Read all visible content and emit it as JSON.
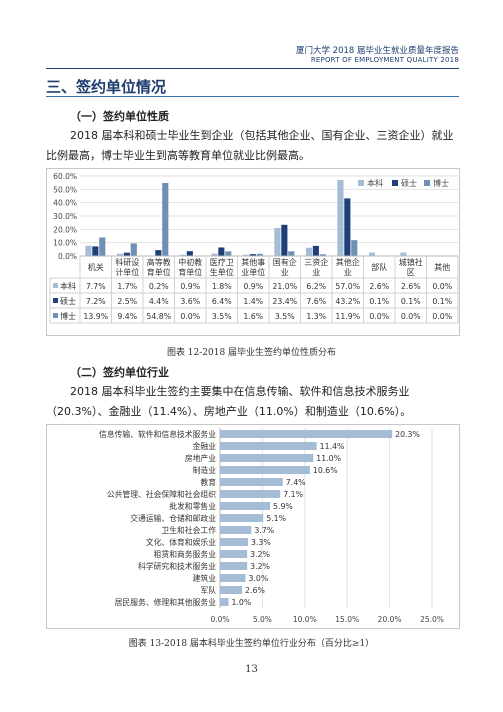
{
  "header": {
    "title_cn": "厦门大学 2018 届毕业生就业质量年度报告",
    "title_en": "REPORT OF EMPLOYMENT QUALITY 2018"
  },
  "section_title": "三、签约单位情况",
  "sub1": {
    "title": "（一）签约单位性质",
    "paragraph": "2018 届本科和硕士毕业生到企业（包括其他企业、国有企业、三资企业）就业比例最高，博士毕业生到高等教育单位就业比例最高。"
  },
  "colors": {
    "本科": "#a5bcd6",
    "硕士": "#1f3f78",
    "博士": "#6f8fb5"
  },
  "chart1": {
    "type": "bar",
    "categories": [
      "机关",
      "科研设计单位",
      "高等教育单位",
      "中初教育单位",
      "医疗卫生单位",
      "其他事业单位",
      "国有企业",
      "三资企业",
      "其他企业",
      "部队",
      "城镇社区",
      "其他"
    ],
    "category_lines": [
      [
        "机关"
      ],
      [
        "科研设",
        "计单位"
      ],
      [
        "高等教",
        "育单位"
      ],
      [
        "中初教",
        "育单位"
      ],
      [
        "医疗卫",
        "生单位"
      ],
      [
        "其他事",
        "业单位"
      ],
      [
        "国有企",
        "业"
      ],
      [
        "三资企",
        "业"
      ],
      [
        "其他企",
        "业"
      ],
      [
        "部队"
      ],
      [
        "城镇社",
        "区"
      ],
      [
        "其他"
      ]
    ],
    "series": [
      {
        "name": "本科",
        "values": [
          7.7,
          1.7,
          0.2,
          0.9,
          1.8,
          0.9,
          21.0,
          6.2,
          57.0,
          2.6,
          2.6,
          0.0
        ]
      },
      {
        "name": "硕士",
        "values": [
          7.2,
          2.5,
          4.4,
          3.6,
          6.4,
          1.4,
          23.4,
          7.6,
          43.2,
          0.1,
          0.1,
          0.1
        ]
      },
      {
        "name": "博士",
        "values": [
          13.9,
          9.4,
          54.8,
          0.0,
          3.5,
          1.6,
          3.5,
          1.3,
          11.9,
          0.0,
          0.0,
          0.0
        ]
      }
    ],
    "table_rows": [
      [
        "7.7%",
        "1.7%",
        "0.2%",
        "0.9%",
        "1.8%",
        "0.9%",
        "21.0%",
        "6.2%",
        "57.0%",
        "2.6%",
        "2.6%",
        "0.0%"
      ],
      [
        "7.2%",
        "2.5%",
        "4.4%",
        "3.6%",
        "6.4%",
        "1.4%",
        "23.4%",
        "7.6%",
        "43.2%",
        "0.1%",
        "0.1%",
        "0.1%"
      ],
      [
        "13.9%",
        "9.4%",
        "54.8%",
        "0.0%",
        "3.5%",
        "1.6%",
        "3.5%",
        "1.3%",
        "11.9%",
        "0.0%",
        "0.0%",
        "0.0%"
      ]
    ],
    "y_ticks": [
      "0.0%",
      "10.0%",
      "20.0%",
      "30.0%",
      "40.0%",
      "50.0%",
      "60.0%"
    ],
    "ylim": [
      0,
      60
    ],
    "legend_position": "top-right",
    "grid": true,
    "caption": "图表 12-2018 届毕业生签约单位性质分布"
  },
  "sub2": {
    "title": "（二）签约单位行业",
    "paragraph": "2018 届本科毕业生签约主要集中在信息传输、软件和信息技术服务业（20.3%）、金融业（11.4%）、房地产业（11.0%）和制造业（10.6%）。"
  },
  "chart2": {
    "type": "bar",
    "orientation": "horizontal",
    "categories": [
      "信息传输、软件和信息技术服务业",
      "金融业",
      "房地产业",
      "制造业",
      "教育",
      "公共管理、社会保障和社会组织",
      "批发和零售业",
      "交通运输、仓储和邮政业",
      "卫生和社会工作",
      "文化、体育和娱乐业",
      "租赁和商务服务业",
      "科学研究和技术服务业",
      "建筑业",
      "军队",
      "居民服务、修理和其他服务业"
    ],
    "values": [
      20.3,
      11.4,
      11.0,
      10.6,
      7.4,
      7.1,
      5.9,
      5.1,
      3.7,
      3.3,
      3.2,
      3.2,
      3.0,
      2.6,
      1.0
    ],
    "labels": [
      "20.3%",
      "11.4%",
      "11.0%",
      "10.6%",
      "7.4%",
      "7.1%",
      "5.9%",
      "5.1%",
      "3.7%",
      "3.3%",
      "3.2%",
      "3.2%",
      "3.0%",
      "2.6%",
      "1.0%"
    ],
    "x_ticks": [
      "0.0%",
      "5.0%",
      "10.0%",
      "15.0%",
      "20.0%",
      "25.0%"
    ],
    "xlim": [
      0,
      25
    ],
    "bar_color": "#a5bcd6",
    "caption": "图表 13-2018 届本科毕业生签约单位行业分布（百分比≥1）"
  },
  "page_number": "13"
}
